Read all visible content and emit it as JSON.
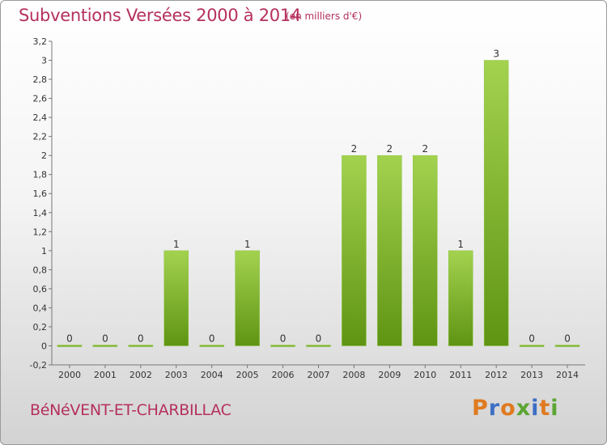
{
  "chart_data": {
    "type": "bar",
    "title": "Subventions Versées 2000 à 2014",
    "unit_note": "(en milliers d'€)",
    "categories": [
      "2000",
      "2001",
      "2002",
      "2003",
      "2004",
      "2005",
      "2006",
      "2007",
      "2008",
      "2009",
      "2010",
      "2011",
      "2012",
      "2013",
      "2014"
    ],
    "values": [
      0,
      0,
      0,
      1,
      0,
      1,
      0,
      0,
      2,
      2,
      2,
      1,
      3,
      0,
      0
    ],
    "value_labels": [
      "0",
      "0",
      "0",
      "1",
      "0",
      "1",
      "0",
      "0",
      "2",
      "2",
      "2",
      "1",
      "3",
      "0",
      "0"
    ],
    "ylim": [
      -0.2,
      3.2
    ],
    "yticks": [
      -0.2,
      0,
      0.2,
      0.4,
      0.6,
      0.8,
      1,
      1.2,
      1.4,
      1.6,
      1.8,
      2,
      2.2,
      2.4,
      2.6,
      2.8,
      3,
      3.2
    ],
    "ytick_labels": [
      "-0,2",
      "0",
      "0,2",
      "0,4",
      "0,6",
      "0,8",
      "1",
      "1,2",
      "1,4",
      "1,6",
      "1,8",
      "2",
      "2,2",
      "2,4",
      "2,6",
      "2,8",
      "3",
      "3,2"
    ],
    "xlabel": "",
    "ylabel": "",
    "grid": false,
    "bar_color_top": "#a3d24f",
    "bar_color_bottom": "#5f9413"
  },
  "footer": {
    "commune": "BéNéVENT-ET-CHARBILLAC",
    "logo_letters": [
      "P",
      "r",
      "o",
      "x",
      "i",
      "t",
      "i"
    ],
    "logo_colors": [
      "#e07a1f",
      "#3d6fc4",
      "#e07a1f",
      "#5aa532",
      "#3d6fc4",
      "#e07a1f",
      "#5aa532"
    ]
  }
}
